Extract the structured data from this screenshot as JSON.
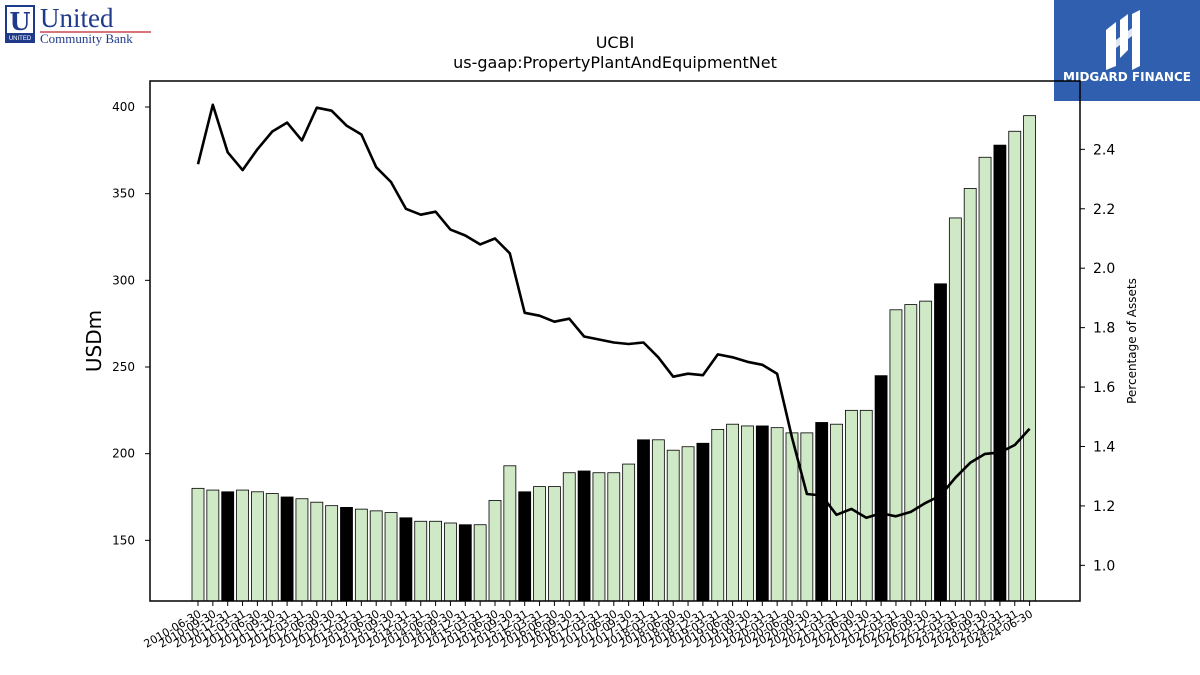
{
  "logos": {
    "left": {
      "line1": "United",
      "line2": "Community Bank",
      "mark": "U",
      "mark_caption": "UNITED",
      "color": "#1f3a8a",
      "accent": "#c0202e"
    },
    "right": {
      "text": "MIDGARD FINANCE",
      "bg_color": "#2f5fae"
    }
  },
  "chart_data": {
    "type": "bar",
    "title": "UCBI",
    "subtitle": "us-gaap:PropertyPlantAndEquipmentNet",
    "ylabel": "USDm",
    "y2label": "Percentage of Assets",
    "ylim": [
      115,
      415
    ],
    "y2lim": [
      0.88,
      2.63
    ],
    "yticks": [
      150,
      200,
      250,
      300,
      350,
      400
    ],
    "y2ticks": [
      1.0,
      1.2,
      1.4,
      1.6,
      1.8,
      2.0,
      2.2,
      2.4
    ],
    "bar_colors": {
      "default": "#cfe8c6",
      "year_end": "#000000",
      "edge": "#000000"
    },
    "line_color": "#000000",
    "categories": [
      "2010-06-30",
      "2010-09-30",
      "2010-12-31",
      "2011-03-31",
      "2011-06-30",
      "2011-09-30",
      "2011-12-31",
      "2012-03-31",
      "2012-06-30",
      "2012-09-30",
      "2012-12-31",
      "2013-03-31",
      "2013-06-30",
      "2013-09-30",
      "2013-12-31",
      "2014-03-31",
      "2014-06-30",
      "2014-09-30",
      "2014-12-31",
      "2015-03-31",
      "2015-06-30",
      "2015-09-30",
      "2015-12-31",
      "2016-03-31",
      "2016-06-30",
      "2016-09-30",
      "2016-12-31",
      "2017-03-31",
      "2017-06-30",
      "2017-09-30",
      "2017-12-31",
      "2018-03-31",
      "2018-06-30",
      "2018-09-30",
      "2018-12-31",
      "2019-03-31",
      "2019-06-30",
      "2019-09-30",
      "2019-12-31",
      "2020-03-31",
      "2020-06-30",
      "2020-09-30",
      "2020-12-31",
      "2021-03-31",
      "2021-06-30",
      "2021-09-30",
      "2021-12-31",
      "2022-03-31",
      "2022-06-30",
      "2022-09-30",
      "2022-12-31",
      "2023-03-31",
      "2023-06-30",
      "2023-09-30",
      "2023-12-31",
      "2024-03-31",
      "2024-06-30"
    ],
    "series": [
      {
        "values": [
          180,
          179,
          178,
          179,
          178,
          177,
          175,
          174,
          172,
          170,
          169,
          168,
          167,
          166,
          163,
          161,
          161,
          160,
          159,
          159,
          173,
          193,
          178,
          181,
          181,
          189,
          190,
          189,
          189,
          194,
          208,
          208,
          202,
          204,
          206,
          214,
          217,
          216,
          216,
          215,
          212,
          212,
          218,
          217,
          225,
          225,
          245,
          283,
          286,
          288,
          298,
          336,
          353,
          371,
          378,
          386,
          395
        ]
      },
      {
        "axis": "right",
        "values": [
          2.35,
          2.55,
          2.39,
          2.33,
          2.4,
          2.46,
          2.49,
          2.43,
          2.54,
          2.53,
          2.48,
          2.45,
          2.34,
          2.29,
          2.2,
          2.18,
          2.19,
          2.13,
          2.11,
          2.08,
          2.1,
          2.05,
          1.85,
          1.84,
          1.82,
          1.83,
          1.77,
          1.76,
          1.75,
          1.745,
          1.75,
          1.7,
          1.635,
          1.645,
          1.64,
          1.71,
          1.7,
          1.685,
          1.675,
          1.645,
          1.43,
          1.24,
          1.235,
          1.17,
          1.19,
          1.16,
          1.175,
          1.165,
          1.18,
          1.21,
          1.235,
          1.295,
          1.345,
          1.375,
          1.38,
          1.405,
          1.46
        ]
      }
    ]
  }
}
